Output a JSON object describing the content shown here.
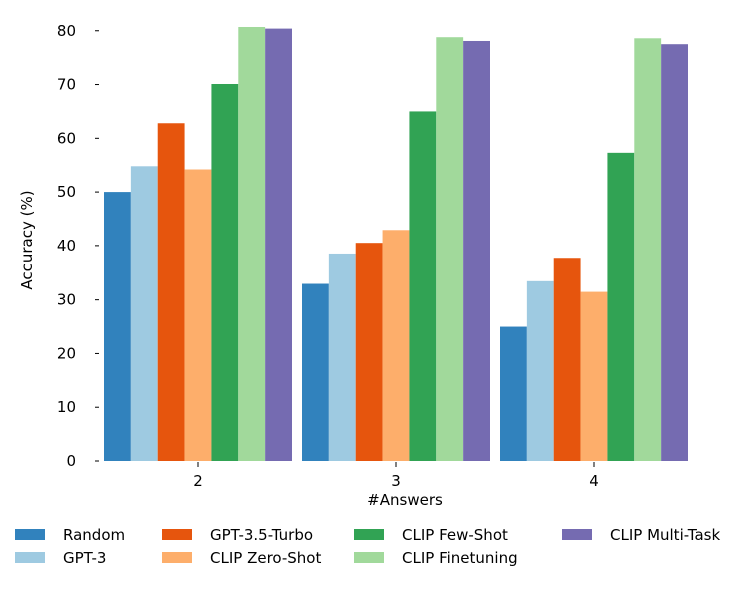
{
  "chart_data": {
    "type": "bar",
    "title": "",
    "xlabel": "#Answers",
    "ylabel": "Accuracy (%)",
    "ylim": [
      0,
      82
    ],
    "yticks": [
      0,
      10,
      20,
      30,
      40,
      50,
      60,
      70,
      80
    ],
    "grid": false,
    "legend_position": "bottom",
    "categories": [
      "2",
      "3",
      "4"
    ],
    "series": [
      {
        "name": "Random",
        "color": "#3182bd",
        "values": [
          50.0,
          33.0,
          25.0
        ]
      },
      {
        "name": "GPT-3",
        "color": "#9ecae1",
        "values": [
          54.8,
          38.5,
          33.5
        ]
      },
      {
        "name": "GPT-3.5-Turbo",
        "color": "#e6550d",
        "values": [
          62.8,
          40.5,
          37.7
        ]
      },
      {
        "name": "CLIP Zero-Shot",
        "color": "#fdae6b",
        "values": [
          54.2,
          42.9,
          31.5
        ]
      },
      {
        "name": "CLIP Few-Shot",
        "color": "#31a354",
        "values": [
          70.1,
          65.0,
          57.3
        ]
      },
      {
        "name": "CLIP Finetuning",
        "color": "#a1d99b",
        "values": [
          80.7,
          78.8,
          78.6
        ]
      },
      {
        "name": "CLIP Multi-Task",
        "color": "#756bb1",
        "values": [
          80.4,
          78.1,
          77.5
        ]
      }
    ]
  }
}
